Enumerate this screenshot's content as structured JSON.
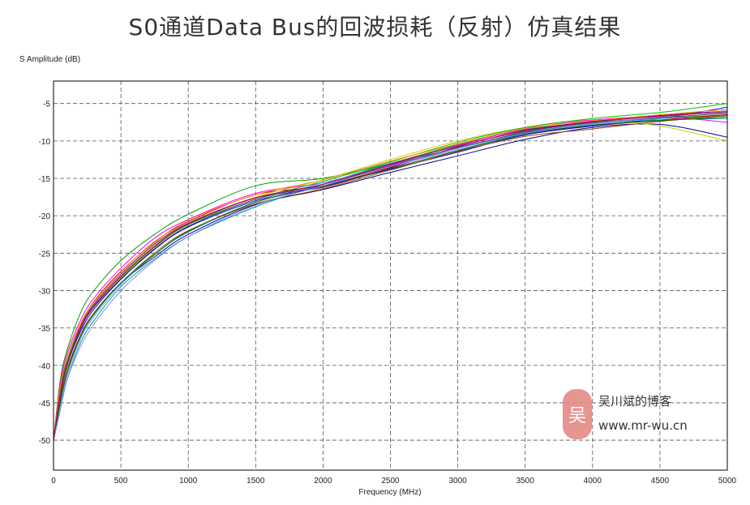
{
  "chart_data": {
    "type": "line",
    "title": "S0通道Data Bus的回波损耗（反射）仿真结果",
    "xlabel": "Frequency (MHz)",
    "ylabel": "S Amplitude (dB)",
    "xlim": [
      0,
      5000
    ],
    "ylim": [
      -54,
      -2
    ],
    "x_ticks": [
      0,
      500,
      1000,
      1500,
      2000,
      2500,
      3000,
      3500,
      4000,
      4500,
      5000
    ],
    "y_ticks": [
      -5,
      -10,
      -15,
      -20,
      -25,
      -30,
      -35,
      -40,
      -45,
      -50
    ],
    "grid": true,
    "legend": "none",
    "x": [
      0,
      50,
      100,
      200,
      300,
      500,
      750,
      1000,
      1500,
      2000,
      2500,
      3000,
      3500,
      4000,
      4500,
      5000
    ],
    "series": [
      {
        "color": "#00a000",
        "values": [
          -50,
          -42,
          -38,
          -33,
          -30,
          -26,
          -22.5,
          -19.8,
          -16,
          -15,
          -13,
          -10.5,
          -8.5,
          -7.5,
          -7,
          -6.5
        ]
      },
      {
        "color": "#000080",
        "values": [
          -50,
          -45,
          -41,
          -36,
          -33,
          -29,
          -25.5,
          -22.5,
          -18.5,
          -16.5,
          -14.2,
          -12,
          -9.8,
          -8.2,
          -7.8,
          -9.5
        ]
      },
      {
        "color": "#cc0000",
        "values": [
          -50,
          -43,
          -39,
          -34.5,
          -31.5,
          -27.5,
          -23.5,
          -20.8,
          -17.2,
          -16,
          -13.5,
          -11,
          -9,
          -8,
          -7.2,
          -6.5
        ]
      },
      {
        "color": "#cccc00",
        "values": [
          -50,
          -44,
          -40,
          -35,
          -32,
          -28,
          -24,
          -21,
          -17.5,
          -15.2,
          -12.5,
          -10,
          -8.2,
          -7.2,
          -8,
          -10
        ]
      },
      {
        "color": "#0000ff",
        "values": [
          -50,
          -44,
          -40,
          -35.5,
          -32.5,
          -28.5,
          -24.5,
          -21.5,
          -18,
          -16,
          -13.8,
          -11.5,
          -9.2,
          -8,
          -7,
          -5.5
        ]
      },
      {
        "color": "#009999",
        "values": [
          -50,
          -46,
          -42,
          -37,
          -34,
          -29.5,
          -25.8,
          -22.8,
          -18.8,
          -15.8,
          -13,
          -11,
          -8.8,
          -7.6,
          -7.2,
          -7
        ]
      },
      {
        "color": "#800080",
        "values": [
          -50,
          -43,
          -39.5,
          -34.8,
          -31.8,
          -27.8,
          -23.8,
          -21,
          -17.6,
          -16.2,
          -13.6,
          -10.8,
          -8.6,
          -7.4,
          -6.6,
          -6
        ]
      },
      {
        "color": "#ff00ff",
        "values": [
          -50,
          -42.5,
          -38.5,
          -34,
          -31,
          -27,
          -23,
          -20.5,
          -17,
          -15.6,
          -13.2,
          -10.6,
          -8.4,
          -7.2,
          -6.8,
          -7.5
        ]
      },
      {
        "color": "#00c000",
        "values": [
          -50,
          -43.5,
          -39.5,
          -35,
          -32,
          -28.2,
          -24.2,
          -21.2,
          -17.8,
          -15.4,
          -12.8,
          -10.2,
          -8.2,
          -7,
          -6.2,
          -5
        ]
      },
      {
        "color": "#66aaff",
        "values": [
          -50,
          -45.5,
          -41.5,
          -36.5,
          -33.5,
          -29.2,
          -25.2,
          -22.2,
          -18.2,
          -15.6,
          -13.4,
          -11.2,
          -9,
          -7.8,
          -7,
          -6.2
        ]
      },
      {
        "color": "#994400",
        "values": [
          -50,
          -44.5,
          -40.5,
          -36,
          -33,
          -29,
          -25,
          -22,
          -18.4,
          -16.4,
          -13.9,
          -11.4,
          -9.4,
          -8.4,
          -7.4,
          -6.6
        ]
      },
      {
        "color": "#444444",
        "values": [
          -50,
          -44,
          -40,
          -35.2,
          -32.2,
          -28.4,
          -24.4,
          -21.4,
          -17.8,
          -15.8,
          -13.3,
          -10.9,
          -8.9,
          -7.7,
          -6.9,
          -6.3
        ]
      },
      {
        "color": "#ff8800",
        "values": [
          -50,
          -43,
          -39,
          -34.6,
          -31.4,
          -27.4,
          -23.6,
          -20.6,
          -17.2,
          -15.2,
          -12.7,
          -10.4,
          -8.3,
          -7.3,
          -6.5,
          -5.8
        ]
      },
      {
        "color": "#006600",
        "values": [
          -50,
          -45,
          -41,
          -36.2,
          -33.2,
          -29,
          -25.2,
          -22.1,
          -18.2,
          -16.1,
          -13.7,
          -11.3,
          -9.1,
          -7.9,
          -7.3,
          -6.8
        ]
      },
      {
        "color": "#8888ff",
        "values": [
          -50,
          -46,
          -42,
          -37.5,
          -34.5,
          -30,
          -26,
          -22.8,
          -18.6,
          -16,
          -13.4,
          -11,
          -9,
          -7.7,
          -6.8,
          -6
        ]
      },
      {
        "color": "#aa0055",
        "values": [
          -50,
          -43.8,
          -39.8,
          -35.1,
          -32.1,
          -28.1,
          -24.1,
          -21.1,
          -17.6,
          -15.8,
          -13.1,
          -10.7,
          -8.7,
          -7.5,
          -6.7,
          -6.1
        ]
      }
    ]
  },
  "watermark": {
    "logo_char": "吴",
    "name": "吴川斌的博客",
    "url": "www.mr-wu.cn"
  }
}
